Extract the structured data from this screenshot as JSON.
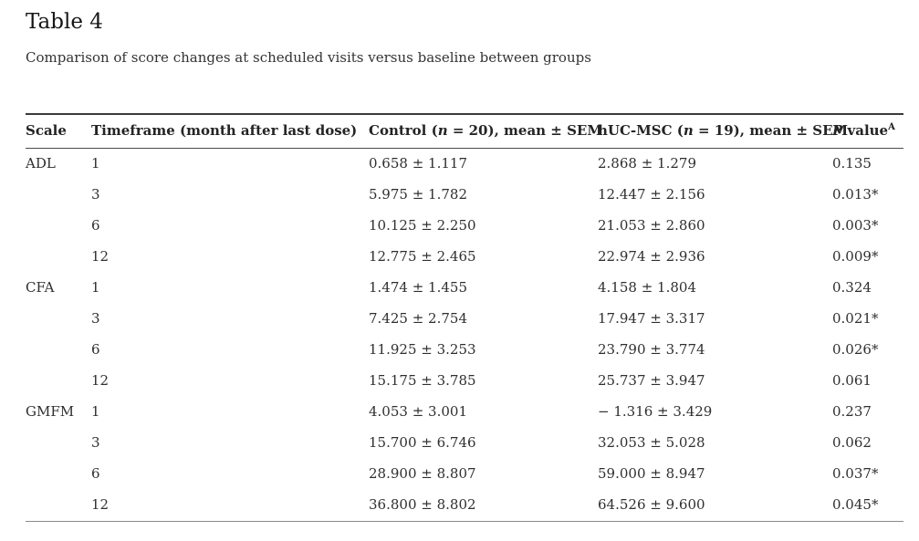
{
  "page": {
    "title": "Table 4",
    "caption": "Comparison of score changes at scheduled visits versus baseline between groups"
  },
  "colors": {
    "background": "#ffffff",
    "text": "#2f2f2f",
    "title_text": "#161616",
    "border_top": "#3a3a3a",
    "border_header": "#4a4a4a",
    "border_bottom": "#8a8a8a"
  },
  "table": {
    "headers": {
      "scale": "Scale",
      "timeframe": "Timeframe (month after last dose)",
      "control": {
        "pre": "Control (",
        "n": "n",
        "post": " = 20), mean ± SEM"
      },
      "hucmsc": {
        "pre": "hUC-MSC (",
        "n": "n",
        "post": " = 19), mean ± SEM"
      },
      "pvalue": {
        "italic": "P",
        "text": " value",
        "sup": "A"
      }
    },
    "rows": [
      {
        "scale": "ADL",
        "timeframe": "1",
        "control": "0.658 ± 1.117",
        "hucmsc": "2.868 ± 1.279",
        "pvalue": "0.135"
      },
      {
        "scale": "",
        "timeframe": "3",
        "control": "5.975 ± 1.782",
        "hucmsc": "12.447 ± 2.156",
        "pvalue": "0.013*"
      },
      {
        "scale": "",
        "timeframe": "6",
        "control": "10.125 ± 2.250",
        "hucmsc": "21.053 ± 2.860",
        "pvalue": "0.003*"
      },
      {
        "scale": "",
        "timeframe": "12",
        "control": "12.775 ± 2.465",
        "hucmsc": "22.974 ± 2.936",
        "pvalue": "0.009*"
      },
      {
        "scale": "CFA",
        "timeframe": "1",
        "control": "1.474 ± 1.455",
        "hucmsc": "4.158 ± 1.804",
        "pvalue": "0.324"
      },
      {
        "scale": "",
        "timeframe": "3",
        "control": "7.425 ± 2.754",
        "hucmsc": "17.947 ± 3.317",
        "pvalue": "0.021*"
      },
      {
        "scale": "",
        "timeframe": "6",
        "control": "11.925 ± 3.253",
        "hucmsc": "23.790 ± 3.774",
        "pvalue": "0.026*"
      },
      {
        "scale": "",
        "timeframe": "12",
        "control": "15.175 ± 3.785",
        "hucmsc": "25.737 ± 3.947",
        "pvalue": "0.061"
      },
      {
        "scale": "GMFM",
        "timeframe": "1",
        "control": "4.053 ± 3.001",
        "hucmsc": "− 1.316 ± 3.429",
        "pvalue": "0.237"
      },
      {
        "scale": "",
        "timeframe": "3",
        "control": "15.700 ± 6.746",
        "hucmsc": "32.053 ± 5.028",
        "pvalue": "0.062"
      },
      {
        "scale": "",
        "timeframe": "6",
        "control": "28.900 ± 8.807",
        "hucmsc": "59.000 ± 8.947",
        "pvalue": "0.037*"
      },
      {
        "scale": "",
        "timeframe": "12",
        "control": "36.800 ± 8.802",
        "hucmsc": "64.526 ± 9.600",
        "pvalue": "0.045*"
      }
    ]
  }
}
